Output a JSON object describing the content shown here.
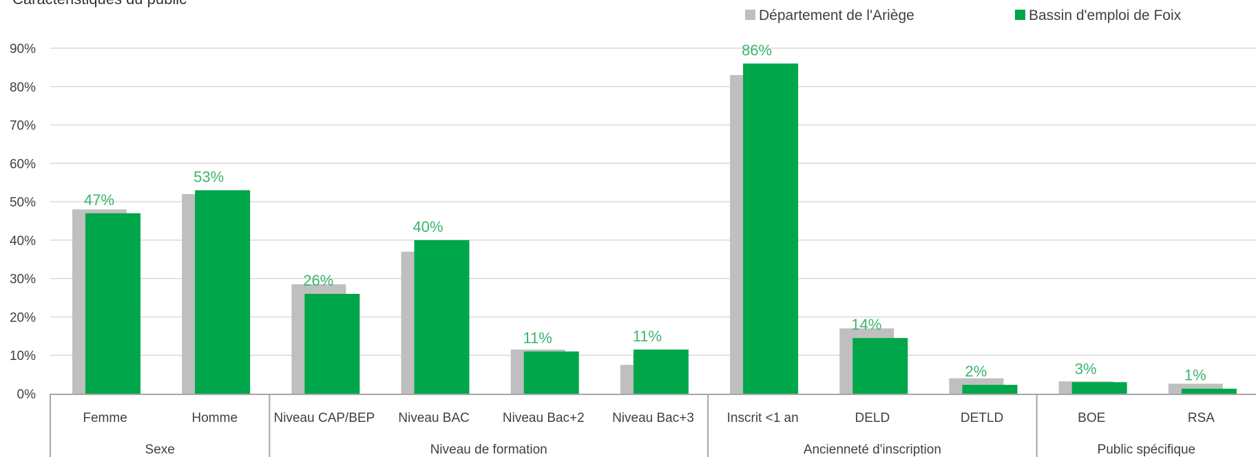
{
  "chart_data": {
    "type": "bar",
    "title": "Caractéristiques du public",
    "ylim": [
      0,
      90
    ],
    "yticks": [
      "0%",
      "10%",
      "20%",
      "30%",
      "40%",
      "50%",
      "60%",
      "70%",
      "80%",
      "90%"
    ],
    "grid": true,
    "legend_position": "top-right",
    "categories": [
      "Femme",
      "Homme",
      "Niveau CAP/BEP",
      "Niveau BAC",
      "Niveau Bac+2",
      "Niveau Bac+3",
      "Inscrit <1 an",
      "DELD",
      "DETLD",
      "BOE",
      "RSA"
    ],
    "groups": [
      {
        "label": "Sexe",
        "count": 2
      },
      {
        "label": "Niveau de formation",
        "count": 4
      },
      {
        "label": "Ancienneté d'inscription",
        "count": 3
      },
      {
        "label": "Public spécifique",
        "count": 2
      }
    ],
    "series": [
      {
        "name": "Département de l'Ariège",
        "color": "#bfbfbf",
        "values": [
          48,
          52,
          28.5,
          37,
          11.5,
          7.5,
          83,
          17,
          4,
          3.2,
          2.6
        ]
      },
      {
        "name": "Bassin d'emploi de Foix",
        "color": "#00a64a",
        "values": [
          47,
          53,
          26,
          40,
          11,
          11.5,
          86,
          14.5,
          2.3,
          3,
          1.3
        ]
      }
    ],
    "data_labels": [
      "47%",
      "53%",
      "26%",
      "40%",
      "11%",
      "11%",
      "86%",
      "14%",
      "2%",
      "3%",
      "1%"
    ],
    "label_color": "#3cb46e"
  }
}
